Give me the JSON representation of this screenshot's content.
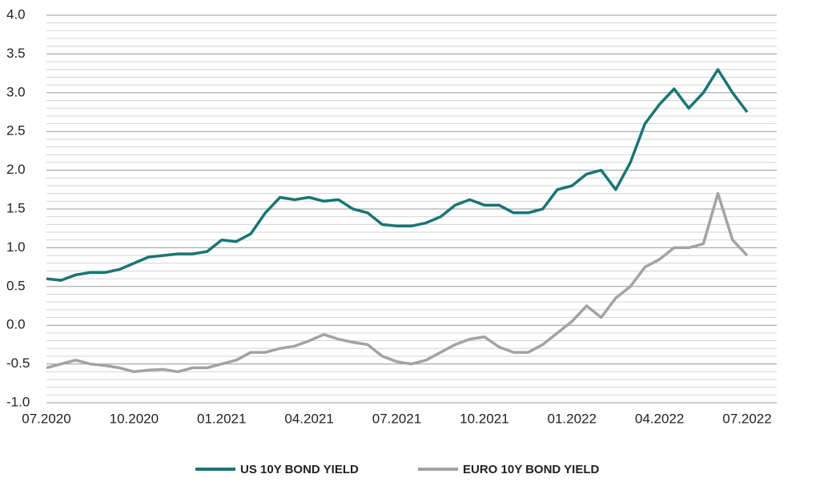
{
  "chart_data": {
    "type": "line",
    "x": [
      "07.2020",
      null,
      null,
      null,
      null,
      null,
      "10.2020",
      null,
      null,
      null,
      null,
      null,
      "01.2021",
      null,
      null,
      null,
      null,
      null,
      "04.2021",
      null,
      null,
      null,
      null,
      null,
      "07.2021",
      null,
      null,
      null,
      null,
      null,
      "10.2021",
      null,
      null,
      null,
      null,
      null,
      "01.2022",
      null,
      null,
      null,
      null,
      null,
      "04.2022",
      null,
      null,
      null,
      null,
      null,
      "07.2022"
    ],
    "series": [
      {
        "name": "US 10Y BOND YIELD",
        "color": "#1a7573",
        "values": [
          0.6,
          0.58,
          0.65,
          0.68,
          0.68,
          0.72,
          0.8,
          0.88,
          0.9,
          0.92,
          0.92,
          0.95,
          1.1,
          1.08,
          1.18,
          1.45,
          1.65,
          1.62,
          1.65,
          1.6,
          1.62,
          1.5,
          1.45,
          1.3,
          1.28,
          1.28,
          1.32,
          1.4,
          1.55,
          1.62,
          1.55,
          1.55,
          1.45,
          1.45,
          1.5,
          1.75,
          1.8,
          1.95,
          2.0,
          1.75,
          2.1,
          2.6,
          2.85,
          3.05,
          2.8,
          3.0,
          3.3,
          3.0,
          2.75
        ]
      },
      {
        "name": "EURO 10Y BOND YIELD",
        "color": "#a3a3a3",
        "values": [
          -0.55,
          -0.5,
          -0.45,
          -0.5,
          -0.52,
          -0.55,
          -0.6,
          -0.58,
          -0.57,
          -0.6,
          -0.55,
          -0.55,
          -0.5,
          -0.45,
          -0.35,
          -0.35,
          -0.3,
          -0.27,
          -0.2,
          -0.12,
          -0.18,
          -0.22,
          -0.25,
          -0.4,
          -0.47,
          -0.5,
          -0.45,
          -0.35,
          -0.25,
          -0.18,
          -0.15,
          -0.28,
          -0.35,
          -0.35,
          -0.25,
          -0.1,
          0.05,
          0.25,
          0.1,
          0.35,
          0.5,
          0.75,
          0.85,
          1.0,
          1.0,
          1.05,
          1.7,
          1.1,
          0.9
        ]
      }
    ],
    "ylim": [
      -1,
      4
    ],
    "yticks": [
      {
        "value": -1,
        "label": "-1.0"
      },
      -0.5,
      {
        "value": 0,
        "label": "0.0"
      },
      0.5,
      {
        "value": 1,
        "label": "1.0"
      },
      1.5,
      {
        "value": 2,
        "label": "2.0"
      },
      2.5,
      {
        "value": 3,
        "label": "3.0"
      },
      3.5,
      {
        "value": 4,
        "label": "4.0"
      }
    ],
    "grid": true
  }
}
